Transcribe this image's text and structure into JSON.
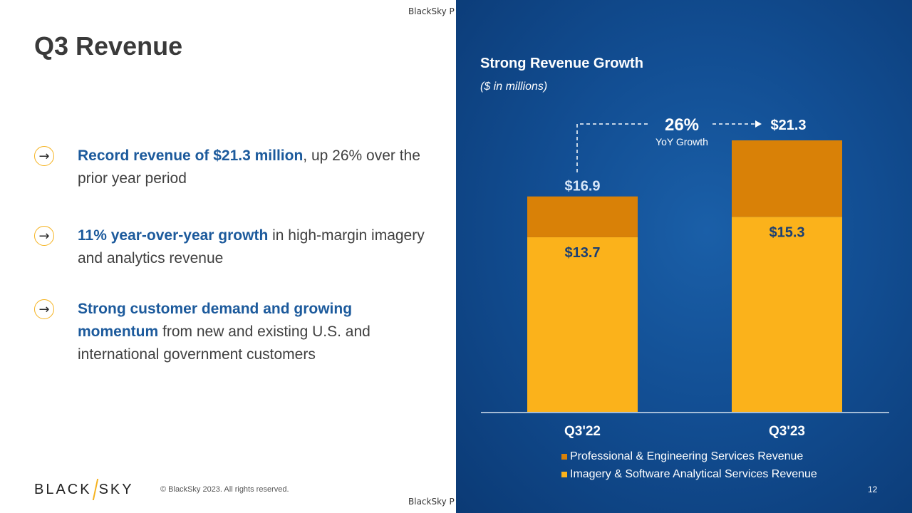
{
  "page": {
    "title": "Q3 Revenue",
    "page_number": "12"
  },
  "watermark": {
    "top": "BlackSky P",
    "bottom": "BlackSky P"
  },
  "bullets": [
    {
      "highlight": "Record revenue of $21.3 million",
      "rest": ", up 26% over the prior year period"
    },
    {
      "highlight": "11% year-over-year growth",
      "rest": " in high-margin imagery and analytics revenue"
    },
    {
      "highlight": "Strong customer demand and growing momentum",
      "rest": " from new and existing U.S. and international government customers"
    }
  ],
  "footer": {
    "logo_left": "BLACK",
    "logo_right": "SKY",
    "copyright": "© BlackSky 2023. All rights reserved."
  },
  "colors": {
    "imagery": "#fbb21b",
    "professional": "#d98107",
    "accent": "#1c5a9c",
    "arrow_circle": "#f5b21e"
  },
  "chart_data": {
    "type": "bar",
    "stacked": true,
    "title": "Strong Revenue Growth",
    "subtitle": "($ in millions)",
    "categories": [
      "Q3'22",
      "Q3'23"
    ],
    "series": [
      {
        "name": "Imagery & Software Analytical Services Revenue",
        "values": [
          13.7,
          15.3
        ],
        "labels": [
          "$13.7",
          "$15.3"
        ]
      },
      {
        "name": "Professional & Engineering Services Revenue",
        "values": [
          3.2,
          6.0
        ]
      }
    ],
    "totals": [
      16.9,
      21.3
    ],
    "total_labels": [
      "$16.9",
      "$21.3"
    ],
    "growth": {
      "value": "26%",
      "label": "YoY Growth"
    },
    "ylim": [
      0,
      21.3
    ],
    "legend_position": "bottom"
  }
}
